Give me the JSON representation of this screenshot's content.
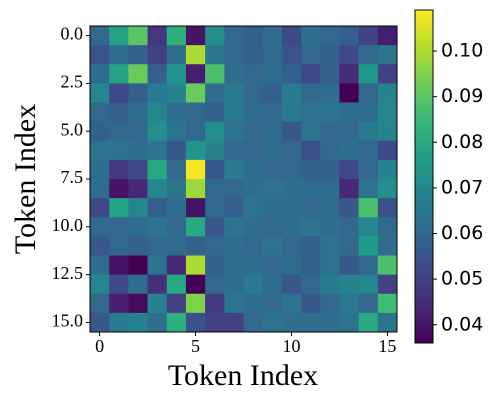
{
  "chart_data": {
    "type": "heatmap",
    "xlabel": "Token Index",
    "ylabel": "Token Index",
    "colormap": "viridis",
    "xlim": [
      -0.5,
      15.5
    ],
    "ylim": [
      15.5,
      -0.5
    ],
    "xticks": [
      0,
      5,
      10,
      15
    ],
    "yticks": [
      {
        "value": 0,
        "label": "0.0"
      },
      2.5,
      {
        "value": 5,
        "label": "5.0"
      },
      7.5,
      {
        "value": 10,
        "label": "10.0"
      },
      12.5,
      {
        "value": 15,
        "label": "15.0"
      }
    ],
    "clim": [
      0.036,
      0.109
    ],
    "cticks": [
      0.04,
      0.05,
      0.06,
      0.07,
      0.08,
      0.09,
      {
        "value": 0.1,
        "label": "0.10"
      }
    ],
    "values": [
      [
        0.06,
        0.078,
        0.09,
        0.048,
        0.082,
        0.04,
        0.072,
        0.06,
        0.058,
        0.062,
        0.052,
        0.062,
        0.06,
        0.058,
        0.05,
        0.042
      ],
      [
        0.055,
        0.062,
        0.058,
        0.05,
        0.062,
        0.1,
        0.065,
        0.06,
        0.058,
        0.06,
        0.055,
        0.06,
        0.058,
        0.052,
        0.06,
        0.064
      ],
      [
        0.062,
        0.078,
        0.092,
        0.058,
        0.074,
        0.042,
        0.088,
        0.062,
        0.06,
        0.062,
        0.058,
        0.052,
        0.058,
        0.045,
        0.075,
        0.05
      ],
      [
        0.07,
        0.052,
        0.058,
        0.066,
        0.068,
        0.092,
        0.062,
        0.066,
        0.06,
        0.058,
        0.066,
        0.06,
        0.062,
        0.036,
        0.06,
        0.068
      ],
      [
        0.06,
        0.058,
        0.062,
        0.07,
        0.062,
        0.06,
        0.058,
        0.066,
        0.062,
        0.06,
        0.066,
        0.064,
        0.064,
        0.062,
        0.062,
        0.07
      ],
      [
        0.058,
        0.06,
        0.06,
        0.072,
        0.064,
        0.06,
        0.072,
        0.064,
        0.06,
        0.062,
        0.056,
        0.064,
        0.06,
        0.06,
        0.066,
        0.068
      ],
      [
        0.064,
        0.064,
        0.062,
        0.064,
        0.056,
        0.074,
        0.068,
        0.06,
        0.06,
        0.062,
        0.06,
        0.054,
        0.06,
        0.062,
        0.06,
        0.052
      ],
      [
        0.062,
        0.048,
        0.052,
        0.08,
        0.06,
        0.108,
        0.056,
        0.066,
        0.062,
        0.06,
        0.06,
        0.058,
        0.058,
        0.052,
        0.06,
        0.068
      ],
      [
        0.062,
        0.04,
        0.044,
        0.07,
        0.064,
        0.098,
        0.06,
        0.06,
        0.062,
        0.064,
        0.062,
        0.062,
        0.062,
        0.044,
        0.064,
        0.072
      ],
      [
        0.052,
        0.078,
        0.07,
        0.058,
        0.062,
        0.04,
        0.06,
        0.058,
        0.064,
        0.062,
        0.062,
        0.06,
        0.062,
        0.056,
        0.088,
        0.054
      ],
      [
        0.06,
        0.06,
        0.062,
        0.064,
        0.06,
        0.08,
        0.056,
        0.064,
        0.062,
        0.06,
        0.062,
        0.064,
        0.062,
        0.06,
        0.07,
        0.06
      ],
      [
        0.056,
        0.06,
        0.058,
        0.06,
        0.062,
        0.058,
        0.06,
        0.062,
        0.06,
        0.064,
        0.06,
        0.058,
        0.064,
        0.06,
        0.076,
        0.062
      ],
      [
        0.062,
        0.04,
        0.036,
        0.064,
        0.044,
        0.1,
        0.058,
        0.062,
        0.062,
        0.06,
        0.062,
        0.058,
        0.064,
        0.056,
        0.06,
        0.088
      ],
      [
        0.07,
        0.052,
        0.062,
        0.046,
        0.08,
        0.036,
        0.06,
        0.062,
        0.066,
        0.062,
        0.056,
        0.06,
        0.066,
        0.068,
        0.07,
        0.05
      ],
      [
        0.06,
        0.042,
        0.038,
        0.068,
        0.05,
        0.095,
        0.048,
        0.064,
        0.062,
        0.06,
        0.064,
        0.056,
        0.06,
        0.066,
        0.06,
        0.086
      ],
      [
        0.056,
        0.066,
        0.068,
        0.062,
        0.082,
        0.054,
        0.05,
        0.05,
        0.06,
        0.064,
        0.062,
        0.062,
        0.062,
        0.064,
        0.08,
        0.064
      ]
    ]
  }
}
